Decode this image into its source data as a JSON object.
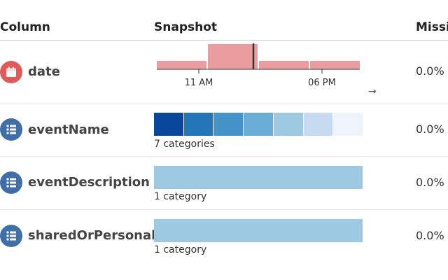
{
  "headers": {
    "column": "Column",
    "snapshot": "Snapshot",
    "missing": "Missi"
  },
  "rows": [
    {
      "name": "date",
      "icon": "calendar-icon",
      "icon_color": "#e05a5a",
      "missing": "0.0%",
      "snapshot_type": "histogram"
    },
    {
      "name": "eventName",
      "icon": "list-icon",
      "icon_color": "#3f6ea8",
      "missing": "0.0%",
      "snapshot_type": "categories",
      "category_label": "7 categories",
      "category_colors": [
        "#08479b",
        "#2474b8",
        "#4493c9",
        "#6aaed7",
        "#9ecae1",
        "#c6dbef",
        "#eff3fc"
      ]
    },
    {
      "name": "eventDescription",
      "icon": "list-icon",
      "icon_color": "#3f6ea8",
      "missing": "0.0%",
      "snapshot_type": "categories",
      "category_label": "1 category",
      "category_colors": [
        "#9ecae1"
      ]
    },
    {
      "name": "sharedOrPersonal",
      "icon": "list-icon",
      "icon_color": "#3f6ea8",
      "missing": "0.0%",
      "snapshot_type": "categories",
      "category_label": "1 category",
      "category_colors": [
        "#9ecae1"
      ]
    }
  ],
  "chart_data": {
    "type": "bar",
    "ticks": [
      "11 AM",
      "06 PM"
    ],
    "values": [
      1,
      3,
      1,
      1
    ],
    "bar_color": "#eb9c9e",
    "marker_color": "#333333",
    "nav_arrow": "→"
  }
}
